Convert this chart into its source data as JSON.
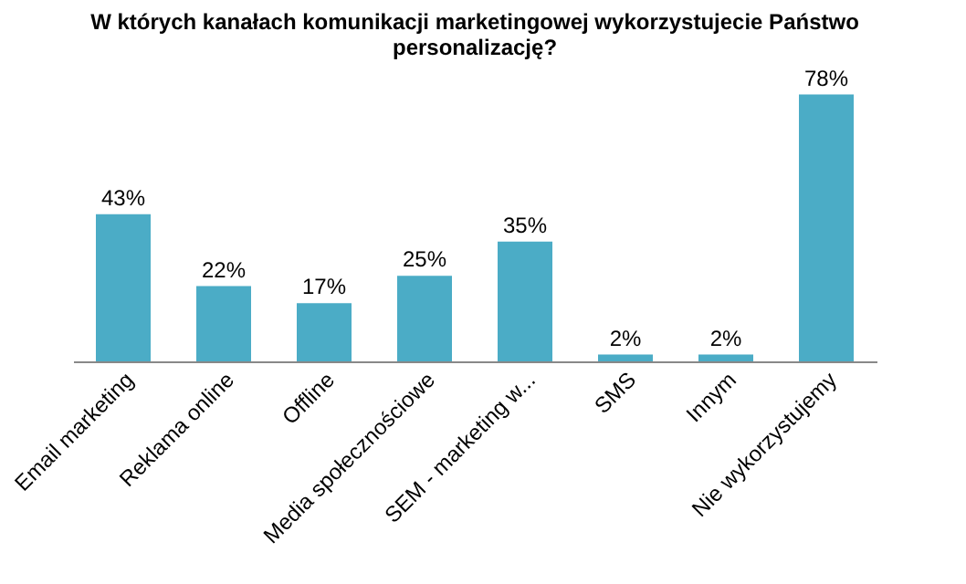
{
  "chart_data": {
    "type": "bar",
    "title": "W których kanałach komunikacji marketingowej wykorzystujecie Państwo personalizację?",
    "categories": [
      "Email marketing",
      "Reklama online",
      "Offline",
      "Media społecznościowe",
      "SEM - marketing w...",
      "SMS",
      "Innym",
      "Nie wykorzystujemy"
    ],
    "values": [
      43,
      22,
      17,
      25,
      35,
      2,
      2,
      78
    ],
    "value_labels": [
      "43%",
      "22%",
      "17%",
      "25%",
      "35%",
      "2%",
      "2%",
      "78%"
    ],
    "color": "#4bacc6",
    "grid": false
  }
}
